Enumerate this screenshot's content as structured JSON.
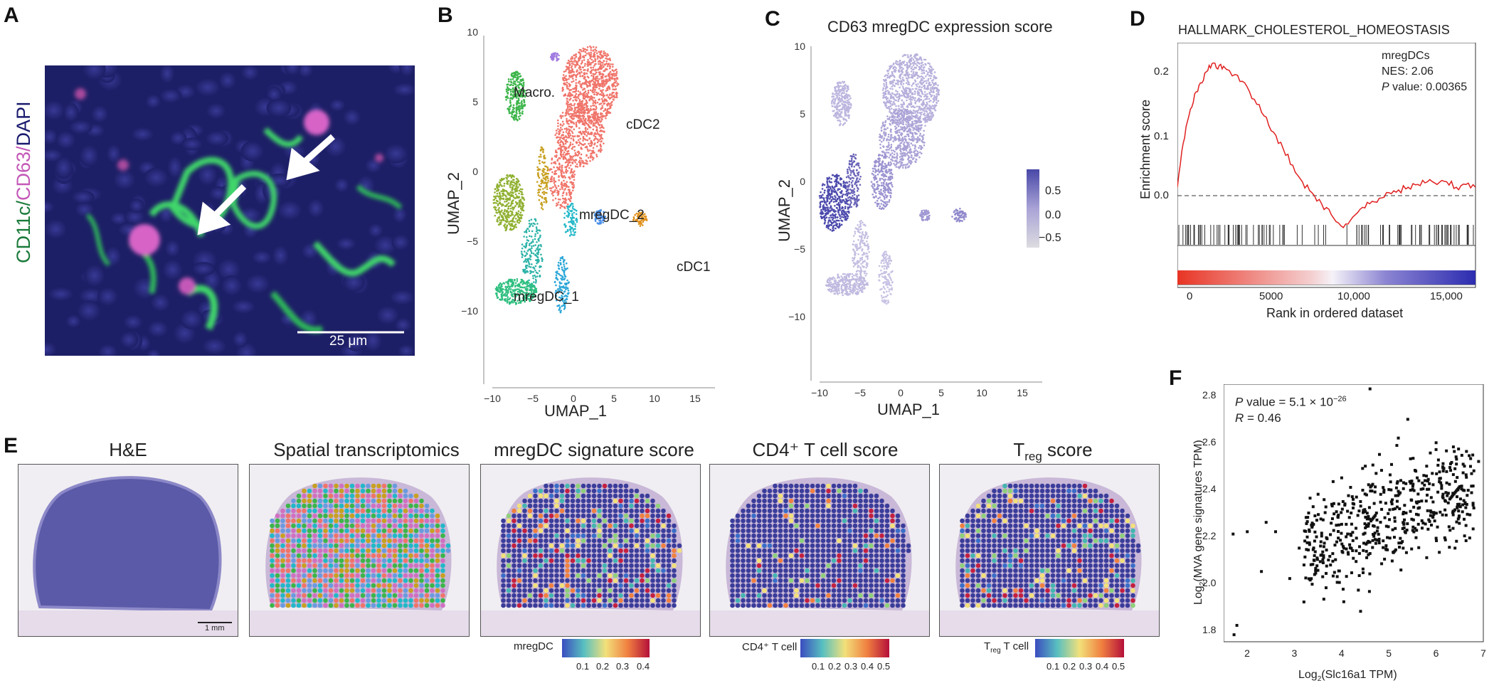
{
  "panels": {
    "a": {
      "letter": "A",
      "stain_label_parts": [
        "CD11c/",
        "CD63/",
        "DAPI"
      ],
      "colors": {
        "cd11c": "#1a7a3a",
        "cd63": "#c458b8",
        "dapi": "#1a1a6e"
      },
      "scale_bar": "25 μm"
    },
    "b": {
      "letter": "B",
      "xlabel": "UMAP_1",
      "ylabel": "UMAP_2",
      "xticks": [
        "−10",
        "−5",
        "0",
        "5",
        "10",
        "15"
      ],
      "yticks": [
        "10",
        "5",
        "0",
        "−5",
        "−10"
      ],
      "cluster_labels": [
        "Macro.",
        "cDC2",
        "mregDC_2",
        "cDC1",
        "mregDC_1"
      ]
    },
    "c": {
      "letter": "C",
      "title": "CD63 mregDC expression score",
      "xlabel": "UMAP_1",
      "ylabel": "UMAP_2",
      "xticks": [
        "−10",
        "−5",
        "0",
        "5",
        "10",
        "15"
      ],
      "yticks": [
        "10",
        "5",
        "0",
        "−5",
        "−10"
      ],
      "legend_ticks": [
        "0.5",
        "0.0",
        "−0.5"
      ]
    },
    "d": {
      "letter": "D",
      "title": "HALLMARK_CHOLESTEROL_HOMEOSTASIS",
      "ylabel": "Enrichment score",
      "xlabel": "Rank in ordered dataset",
      "yticks": [
        "0.2",
        "0.1",
        "0.0"
      ],
      "xticks": [
        "0",
        "5000",
        "10,000",
        "15,000"
      ],
      "annotation": {
        "group": "mregDCs",
        "nes": "NES: 2.06",
        "p_label": "P",
        "p_rest": " value: 0.00365"
      }
    },
    "e": {
      "letter": "E",
      "titles": [
        "H&E",
        "Spatial transcriptomics",
        "mregDC signature score",
        "CD4⁺ T cell score",
        "T",
        "reg",
        " score"
      ],
      "scale_bar": "1 mm",
      "legends": [
        {
          "label": "mregDC",
          "ticks": [
            "0.1",
            "0.2",
            "0.3",
            "0.4"
          ]
        },
        {
          "label": "CD4⁺ T cell",
          "ticks": [
            "0.1",
            "0.2",
            "0.3",
            "0.4",
            "0.5"
          ]
        },
        {
          "label_main": "T",
          "label_sub": "reg",
          "label_rest": " T cell",
          "ticks": [
            "0.1",
            "0.2",
            "0.3",
            "0.4",
            "0.5"
          ]
        }
      ]
    },
    "f": {
      "letter": "F",
      "p_label": "P",
      "p_rest": " value = 5.1 × 10",
      "p_exp": "−26",
      "r_label": "R",
      "r_rest": " = 0.46",
      "xlabel_pre": "Log",
      "xlabel_sub": "2",
      "xlabel_post": "(Slc16a1 TPM)",
      "ylabel_pre": "Log",
      "ylabel_sub": "2",
      "ylabel_post": "(MVA gene signatures TPM)",
      "xticks": [
        "2",
        "3",
        "4",
        "5",
        "6",
        "7"
      ],
      "yticks": [
        "1.8",
        "2.0",
        "2.2",
        "2.4",
        "2.6",
        "2.8"
      ]
    }
  },
  "chart_data": [
    {
      "panel": "D",
      "type": "line",
      "title": "HALLMARK_CHOLESTEROL_HOMEOSTASIS",
      "xlabel": "Rank in ordered dataset",
      "ylabel": "Enrichment score",
      "xlim": [
        0,
        15500
      ],
      "ylim": [
        -0.08,
        0.25
      ],
      "x": [
        0,
        300,
        600,
        900,
        1200,
        1500,
        1800,
        2100,
        2400,
        3000,
        3500,
        4000,
        4500,
        5000,
        5500,
        6000,
        6500,
        7000,
        7500,
        8000,
        8500,
        9000,
        9500,
        10000,
        10500,
        11000,
        11500,
        12000,
        12500,
        13000,
        13500,
        14000,
        14500,
        15000,
        15500
      ],
      "y": [
        0.0,
        0.08,
        0.13,
        0.17,
        0.19,
        0.21,
        0.225,
        0.215,
        0.22,
        0.205,
        0.19,
        0.16,
        0.13,
        0.1,
        0.07,
        0.04,
        0.01,
        -0.01,
        -0.03,
        -0.05,
        -0.07,
        -0.06,
        -0.04,
        -0.03,
        -0.02,
        -0.01,
        -0.005,
        0.0,
        0.005,
        0.01,
        0.005,
        0.01,
        0.0,
        0.005,
        0.0
      ],
      "baseline": 0.0
    },
    {
      "panel": "F",
      "type": "scatter",
      "xlim": [
        1.5,
        7
      ],
      "ylim": [
        1.75,
        2.85
      ],
      "xlabel": "Log2(Slc16a1 TPM)",
      "ylabel": "Log2(MVA gene signatures TPM)",
      "points_sample": [
        [
          1.7,
          2.21
        ],
        [
          1.72,
          1.78
        ],
        [
          1.78,
          1.82
        ],
        [
          2.0,
          2.22
        ],
        [
          2.3,
          2.05
        ],
        [
          2.4,
          2.26
        ],
        [
          2.6,
          2.22
        ],
        [
          2.9,
          2.02
        ],
        [
          3.1,
          2.15
        ],
        [
          3.2,
          1.92
        ],
        [
          3.3,
          2.3
        ],
        [
          3.5,
          2.38
        ],
        [
          3.6,
          2.1
        ],
        [
          3.8,
          2.33
        ],
        [
          4.0,
          2.45
        ],
        [
          4.2,
          2.3
        ],
        [
          4.4,
          1.88
        ],
        [
          4.5,
          2.5
        ],
        [
          4.6,
          2.83
        ],
        [
          4.8,
          2.55
        ],
        [
          5.0,
          2.4
        ],
        [
          5.2,
          2.62
        ],
        [
          5.4,
          2.7
        ],
        [
          5.6,
          2.45
        ],
        [
          5.8,
          2.5
        ],
        [
          6.0,
          2.6
        ],
        [
          6.2,
          2.35
        ],
        [
          6.4,
          2.15
        ],
        [
          6.6,
          2.5
        ],
        [
          6.8,
          2.48
        ],
        [
          6.9,
          2.52
        ]
      ],
      "r": 0.46,
      "p_value": "5.1 × 10−26"
    }
  ]
}
